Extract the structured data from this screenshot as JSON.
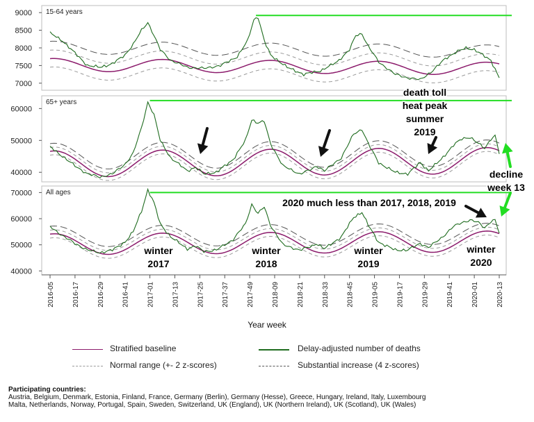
{
  "chart_data": {
    "type": "line",
    "xlabel": "Year week",
    "x_ticks": [
      "2016-05",
      "2016-17",
      "2016-29",
      "2016-41",
      "2017-01",
      "2017-13",
      "2017-25",
      "2017-37",
      "2017-49",
      "2018-09",
      "2018-21",
      "2018-33",
      "2018-45",
      "2019-05",
      "2019-17",
      "2019-29",
      "2019-41",
      "2020-01",
      "2020-13"
    ],
    "weeks_total": 218,
    "panels": [
      {
        "label": "15-64 years",
        "ylim": [
          6800,
          9200
        ],
        "yticks": [
          7000,
          7500,
          8000,
          8500,
          9000
        ],
        "baseline": {
          "mean": 7520,
          "amplitude": 180,
          "trend_per_week": -0.5
        },
        "normal_range_zscore_offset": 240,
        "substantial_increase_offset": 490,
        "deaths_anchors": [
          [
            0,
            8420
          ],
          [
            6,
            8200
          ],
          [
            12,
            7850
          ],
          [
            18,
            7500
          ],
          [
            24,
            7450
          ],
          [
            30,
            7550
          ],
          [
            36,
            7800
          ],
          [
            40,
            8100
          ],
          [
            44,
            8500
          ],
          [
            47,
            8720
          ],
          [
            50,
            8350
          ],
          [
            53,
            7950
          ],
          [
            58,
            7650
          ],
          [
            66,
            7450
          ],
          [
            74,
            7420
          ],
          [
            82,
            7500
          ],
          [
            90,
            7750
          ],
          [
            95,
            8200
          ],
          [
            98,
            8800
          ],
          [
            100,
            8880
          ],
          [
            103,
            8200
          ],
          [
            106,
            7800
          ],
          [
            114,
            7450
          ],
          [
            122,
            7250
          ],
          [
            130,
            7350
          ],
          [
            138,
            7600
          ],
          [
            144,
            7950
          ],
          [
            147,
            8350
          ],
          [
            150,
            8400
          ],
          [
            153,
            8050
          ],
          [
            158,
            7600
          ],
          [
            166,
            7250
          ],
          [
            172,
            7150
          ],
          [
            178,
            7100
          ],
          [
            184,
            7350
          ],
          [
            190,
            7700
          ],
          [
            196,
            7900
          ],
          [
            200,
            8000
          ],
          [
            204,
            7950
          ],
          [
            208,
            7800
          ],
          [
            212,
            7650
          ],
          [
            214,
            7400
          ],
          [
            216,
            7150
          ]
        ],
        "reference_line": {
          "from_week": 99,
          "value": 8920
        }
      },
      {
        "label": "65+ years",
        "ylim": [
          37000,
          64000
        ],
        "yticks": [
          40000,
          50000,
          60000
        ],
        "baseline": {
          "mean": 42600,
          "amplitude": 4100,
          "trend_per_week": 5
        },
        "normal_range_zscore_offset": 1200,
        "substantial_increase_offset": 2400,
        "deaths_anchors": [
          [
            0,
            48000
          ],
          [
            6,
            45000
          ],
          [
            12,
            42000
          ],
          [
            18,
            39500
          ],
          [
            24,
            38500
          ],
          [
            30,
            39500
          ],
          [
            36,
            42500
          ],
          [
            40,
            46000
          ],
          [
            44,
            54000
          ],
          [
            47,
            62000
          ],
          [
            50,
            58000
          ],
          [
            53,
            50000
          ],
          [
            58,
            44500
          ],
          [
            66,
            40500
          ],
          [
            70,
            41500
          ],
          [
            74,
            39500
          ],
          [
            80,
            40000
          ],
          [
            88,
            44000
          ],
          [
            94,
            50000
          ],
          [
            97,
            56500
          ],
          [
            100,
            55500
          ],
          [
            103,
            56000
          ],
          [
            106,
            49000
          ],
          [
            112,
            42000
          ],
          [
            120,
            39500
          ],
          [
            126,
            41000
          ],
          [
            128,
            42000
          ],
          [
            132,
            40500
          ],
          [
            140,
            44500
          ],
          [
            146,
            52000
          ],
          [
            150,
            53500
          ],
          [
            153,
            49000
          ],
          [
            158,
            43000
          ],
          [
            166,
            40000
          ],
          [
            172,
            39500
          ],
          [
            178,
            43000
          ],
          [
            182,
            40500
          ],
          [
            188,
            44000
          ],
          [
            194,
            48500
          ],
          [
            198,
            50500
          ],
          [
            202,
            51000
          ],
          [
            206,
            49000
          ],
          [
            209,
            47500
          ],
          [
            212,
            50500
          ],
          [
            214,
            51500
          ],
          [
            216,
            46000
          ]
        ],
        "reference_line": {
          "from_week": 48,
          "value": 62500
        }
      },
      {
        "label": "All ages",
        "ylim": [
          38500,
          72500
        ],
        "yticks": [
          40000,
          50000,
          60000,
          70000
        ],
        "baseline": {
          "mean": 50200,
          "amplitude": 4000,
          "trend_per_week": 5
        },
        "normal_range_zscore_offset": 1500,
        "substantial_increase_offset": 3000,
        "deaths_anchors": [
          [
            0,
            57000
          ],
          [
            6,
            53500
          ],
          [
            12,
            50500
          ],
          [
            18,
            48000
          ],
          [
            24,
            47000
          ],
          [
            30,
            48000
          ],
          [
            36,
            51000
          ],
          [
            40,
            55000
          ],
          [
            44,
            63000
          ],
          [
            47,
            71000
          ],
          [
            50,
            66000
          ],
          [
            53,
            58000
          ],
          [
            58,
            53000
          ],
          [
            66,
            48500
          ],
          [
            70,
            49500
          ],
          [
            74,
            47500
          ],
          [
            80,
            48000
          ],
          [
            88,
            52000
          ],
          [
            94,
            58000
          ],
          [
            97,
            65500
          ],
          [
            100,
            62000
          ],
          [
            103,
            64500
          ],
          [
            106,
            57500
          ],
          [
            112,
            50000
          ],
          [
            120,
            48000
          ],
          [
            126,
            49500
          ],
          [
            128,
            50500
          ],
          [
            132,
            48500
          ],
          [
            140,
            53000
          ],
          [
            146,
            60500
          ],
          [
            150,
            62500
          ],
          [
            153,
            57500
          ],
          [
            158,
            51000
          ],
          [
            166,
            48000
          ],
          [
            172,
            48000
          ],
          [
            178,
            50500
          ],
          [
            182,
            49000
          ],
          [
            188,
            52500
          ],
          [
            194,
            57000
          ],
          [
            198,
            58500
          ],
          [
            202,
            59500
          ],
          [
            206,
            58500
          ],
          [
            209,
            56500
          ],
          [
            212,
            59000
          ],
          [
            214,
            59500
          ],
          [
            216,
            54500
          ]
        ],
        "reference_line": {
          "from_week": 48,
          "value": 70000
        }
      }
    ],
    "legend": [
      {
        "label": "Stratified baseline",
        "color": "#8b1a6b",
        "style": "solid"
      },
      {
        "label": "Delay-adjusted number of deaths",
        "color": "#1e6b1e",
        "style": "solid"
      },
      {
        "label": "Normal range (+- 2 z-scores)",
        "color": "#999999",
        "style": "dashed"
      },
      {
        "label": "Substantial increase (4 z-scores)",
        "color": "#555555",
        "style": "long-dash"
      }
    ],
    "annotations": {
      "death_toll": [
        "death toll",
        "heat peak",
        "summer",
        "2019"
      ],
      "decline": [
        "decline",
        "week 13"
      ],
      "comparison": "2020 much less than 2017, 2018, 2019",
      "winters": [
        {
          "line1": "winter",
          "line2": "2017"
        },
        {
          "line1": "winter",
          "line2": "2018"
        },
        {
          "line1": "winter",
          "line2": "2019"
        },
        {
          "line1": "winter",
          "line2": "2020"
        }
      ]
    },
    "colors": {
      "deaths": "#1e6b1e",
      "baseline": "#8b1a6b",
      "normal_range": "#999999",
      "substantial": "#555555",
      "reference": "#22dd22",
      "arrow_black": "#111111",
      "arrow_green": "#22dd22"
    }
  },
  "footer": {
    "heading": "Participating countries:",
    "line1": "Austria, Belgium, Denmark, Estonia, Finland, France, Germany (Berlin), Germany (Hesse), Greece, Hungary, Ireland, Italy, Luxembourg",
    "line2": "Malta, Netherlands, Norway, Portugal, Spain, Sweden, Switzerland, UK (England), UK (Northern Ireland), UK (Scotland), UK (Wales)"
  }
}
